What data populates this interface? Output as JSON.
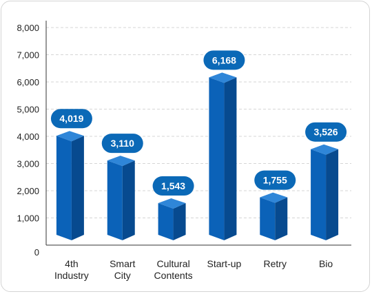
{
  "chart_data": {
    "type": "bar",
    "categories": [
      [
        "4th",
        "Industry"
      ],
      [
        "Smart",
        "City"
      ],
      [
        "Cultural",
        "Contents"
      ],
      [
        "Start-up"
      ],
      [
        "Retry"
      ],
      [
        "Bio"
      ]
    ],
    "values": [
      4019,
      3110,
      1543,
      6168,
      1755,
      3526
    ],
    "value_labels": [
      "4,019",
      "3,110",
      "1,543",
      "6,168",
      "1,755",
      "3,526"
    ],
    "yticks": [
      "0",
      "1,000",
      "2,000",
      "3,000",
      "4,000",
      "5,000",
      "6,000",
      "7,000",
      "8,000"
    ],
    "ylim": [
      0,
      8000
    ],
    "grid": true,
    "colors": {
      "front": "#0b62b8",
      "side": "#074a8f",
      "top": "#2f86d8",
      "label_bg": "#0b69b7",
      "grid": "#d5d5d5",
      "axis": "#333333"
    }
  }
}
